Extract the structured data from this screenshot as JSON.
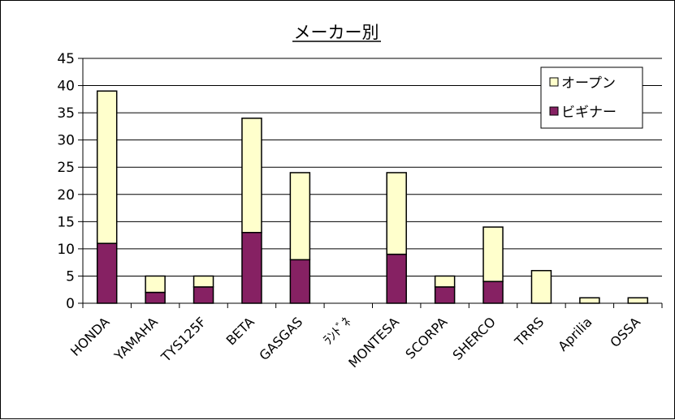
{
  "chart_data": {
    "type": "bar",
    "stacked": true,
    "title": "メーカー別",
    "categories": [
      "HONDA",
      "YAMAHA",
      "TYS125F",
      "BETA",
      "GASGAS",
      "ﾗﾝﾄﾞﾈ",
      "MONTESA",
      "SCORPA",
      "SHERCO",
      "TRRS",
      "Aprilia",
      "OSSA"
    ],
    "series": [
      {
        "name": "ビギナー",
        "color": "#862163",
        "values": [
          11,
          2,
          3,
          13,
          8,
          0,
          9,
          3,
          4,
          0,
          0,
          0
        ]
      },
      {
        "name": "オープン",
        "color": "#FFFFCC",
        "values": [
          28,
          3,
          2,
          21,
          16,
          0,
          15,
          2,
          10,
          6,
          1,
          1
        ]
      }
    ],
    "ylim": [
      0,
      45
    ],
    "yticks": [
      0,
      5,
      10,
      15,
      20,
      25,
      30,
      35,
      40,
      45
    ],
    "grid": true,
    "legend": {
      "position": "top-right",
      "order": [
        "オープン",
        "ビギナー"
      ]
    }
  }
}
